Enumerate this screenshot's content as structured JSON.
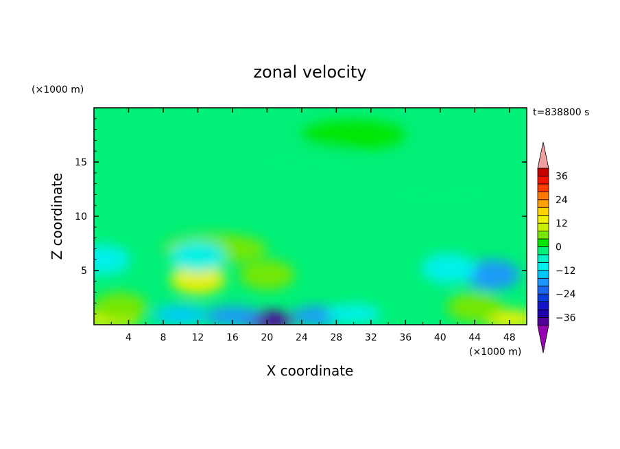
{
  "chart_data": {
    "type": "heatmap",
    "title": "zonal velocity",
    "xlabel": "X coordinate",
    "ylabel": "Z coordinate",
    "x_unit": "(×1000 m)",
    "y_unit": "(×1000 m)",
    "time_label": "t=838800 s",
    "xlim": [
      0,
      50
    ],
    "ylim": [
      0,
      20
    ],
    "x_ticks": [
      4,
      8,
      12,
      16,
      20,
      24,
      28,
      32,
      36,
      40,
      44,
      48
    ],
    "y_ticks": [
      5,
      10,
      15
    ],
    "colorbar": {
      "ticks": [
        36,
        24,
        12,
        0,
        -12,
        -24,
        -36
      ],
      "levels": [
        -40,
        -36,
        -32,
        -28,
        -24,
        -20,
        -16,
        -12,
        -8,
        -4,
        0,
        4,
        8,
        12,
        16,
        20,
        24,
        28,
        32,
        36,
        40
      ],
      "colors": [
        "#52009a",
        "#1e00ae",
        "#1414c8",
        "#0a3cdc",
        "#1964f0",
        "#1e96ff",
        "#00c8ff",
        "#00f0f0",
        "#00f0c8",
        "#00f078",
        "#00e600",
        "#78e600",
        "#c8f000",
        "#f0f000",
        "#ffd200",
        "#ffa000",
        "#ff7800",
        "#ff3c00",
        "#f01400",
        "#c80000"
      ],
      "extend_low_color": "#9a00b4",
      "extend_high_color": "#f0a0a0"
    },
    "field_features": [
      {
        "x": 20,
        "z": 0.4,
        "value": -38
      },
      {
        "x": 16,
        "z": 0.8,
        "value": -20
      },
      {
        "x": 26,
        "z": 0.8,
        "value": -20
      },
      {
        "x": 10,
        "z": 0.9,
        "value": -14
      },
      {
        "x": 30,
        "z": 1.0,
        "value": -10
      },
      {
        "x": 2,
        "z": 0.5,
        "value": 14
      },
      {
        "x": 48,
        "z": 0.5,
        "value": 14
      },
      {
        "x": 3,
        "z": 1.6,
        "value": 6
      },
      {
        "x": 44,
        "z": 1.6,
        "value": 6
      },
      {
        "x": 12,
        "z": 4.2,
        "value": 12
      },
      {
        "x": 20,
        "z": 4.6,
        "value": 7
      },
      {
        "x": 14,
        "z": 7.0,
        "value": 4
      },
      {
        "x": 12,
        "z": 6.3,
        "value": -10
      },
      {
        "x": 1,
        "z": 6.0,
        "value": -12
      },
      {
        "x": 46,
        "z": 4.6,
        "value": -20
      },
      {
        "x": 41,
        "z": 5.2,
        "value": -12
      },
      {
        "x": 25,
        "z": 15.0,
        "value": -1
      },
      {
        "x": 30,
        "z": 17.5,
        "value": 1
      },
      {
        "x": 40,
        "z": 12.0,
        "value": -3
      }
    ]
  }
}
